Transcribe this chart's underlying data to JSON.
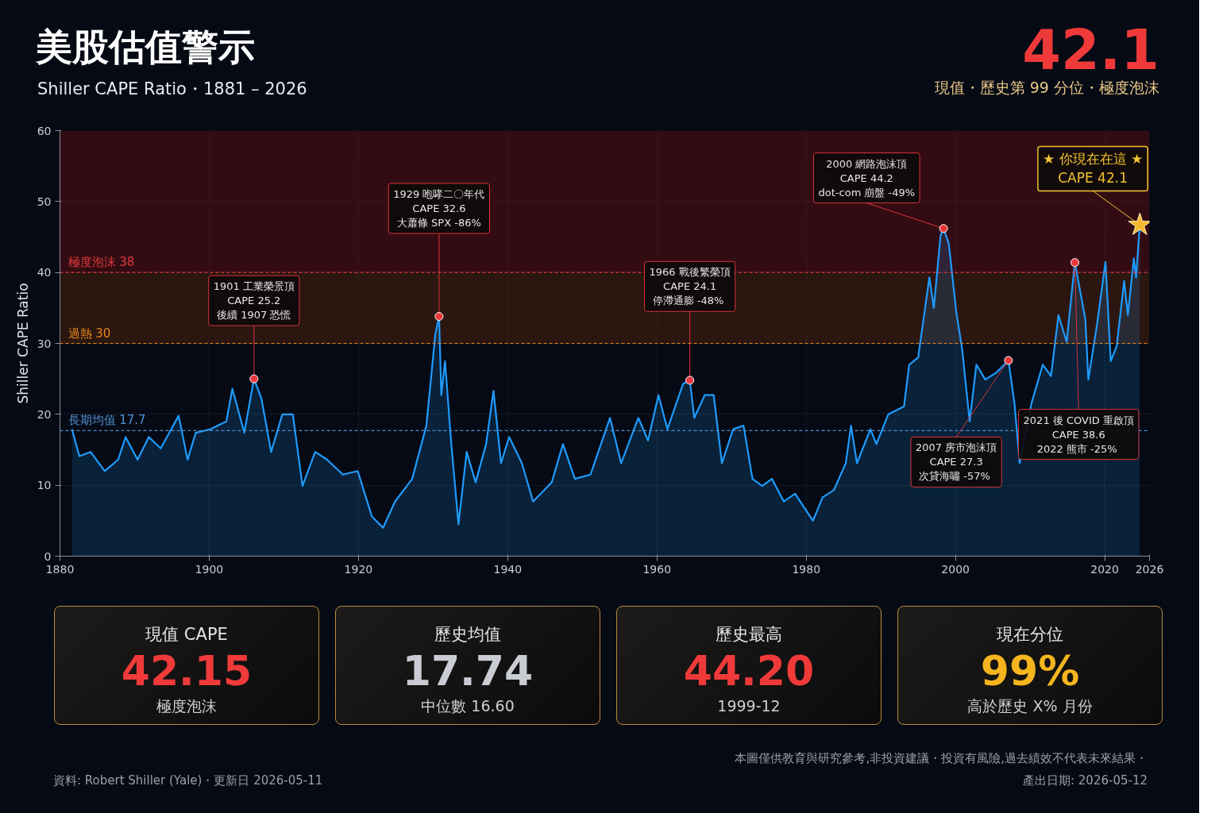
{
  "chart_data": {
    "type": "area",
    "title": "美股估值警示",
    "subtitle": "Shiller CAPE Ratio・1881 – 2026",
    "ylabel": "Shiller CAPE Ratio",
    "xlim": [
      1880,
      2026
    ],
    "xticks": [
      1880,
      1900,
      1920,
      1940,
      1960,
      1980,
      2000,
      2020,
      2026
    ],
    "ylim": [
      0,
      60
    ],
    "yticks": [
      0,
      10,
      20,
      30,
      40,
      50,
      60
    ],
    "grid": true,
    "x": [
      1881.6,
      1882.6,
      1884.1,
      1886,
      1887.8,
      1888.8,
      1890.4,
      1891.9,
      1893.5,
      1895.9,
      1897.1,
      1898.2,
      1900.2,
      1902.3,
      1903.1,
      1904.7,
      1906,
      1907,
      1908.3,
      1909.8,
      1911.2,
      1912.5,
      1914.2,
      1915.8,
      1917.9,
      1919.9,
      1921.8,
      1923.3,
      1924.9,
      1927.2,
      1929.1,
      1930.3,
      1930.8,
      1931.1,
      1931.6,
      1932.4,
      1933.4,
      1934.5,
      1935.7,
      1937.1,
      1938.1,
      1939.1,
      1940.2,
      1941.9,
      1943.4,
      1945.9,
      1947.4,
      1949,
      1951.1,
      1953.7,
      1955.2,
      1957.5,
      1958.8,
      1960.2,
      1961.4,
      1963.5,
      1964.4,
      1965,
      1966.4,
      1967.6,
      1968.7,
      1970.2,
      1971.6,
      1972.8,
      1974.1,
      1975.4,
      1977,
      1978.5,
      1980.9,
      1982.2,
      1983.7,
      1985.3,
      1986,
      1986.8,
      1988.6,
      1989.4,
      1991,
      1993.1,
      1993.8,
      1995,
      1996.5,
      1997.1,
      1998,
      1998.4,
      1999.1,
      2000.1,
      2000.9,
      2001.9,
      2002.8,
      2004,
      2005.5,
      2007.1,
      2007.9,
      2008.6,
      2010.2,
      2011.7,
      2012.8,
      2013.8,
      2014.9,
      2016,
      2017.4,
      2017.8,
      2019,
      2020.1,
      2020.8,
      2021.6,
      2022.6,
      2023.1,
      2023.9,
      2024.2,
      2024.7
    ],
    "series": [
      {
        "color": "#1e9bff",
        "values": [
          17.9,
          14.1,
          14.7,
          12,
          13.6,
          16.8,
          13.6,
          16.8,
          15.2,
          19.8,
          13.6,
          17.4,
          17.9,
          19,
          23.6,
          17.4,
          25,
          22.2,
          14.7,
          20,
          20,
          9.9,
          14.7,
          13.6,
          11.5,
          12,
          5.6,
          4,
          7.7,
          10.9,
          18.4,
          31.3,
          33.8,
          22.7,
          27.5,
          16.3,
          4.5,
          14.7,
          10.4,
          15.8,
          23.3,
          13.1,
          16.8,
          13.1,
          7.7,
          10.4,
          15.8,
          10.9,
          11.5,
          19.5,
          13.1,
          19.5,
          16.3,
          22.7,
          17.9,
          24.3,
          24.8,
          19.5,
          22.7,
          22.7,
          13.1,
          17.9,
          18.4,
          10.9,
          9.9,
          10.9,
          7.7,
          8.8,
          5,
          8.3,
          9.3,
          13.1,
          18.4,
          13.1,
          17.9,
          15.8,
          20,
          21.1,
          27,
          28,
          39.3,
          35,
          45.2,
          46.2,
          44.1,
          34.5,
          29.1,
          19,
          27,
          24.9,
          25.9,
          27.6,
          21.6,
          13.1,
          21.6,
          27,
          25.4,
          34,
          30.2,
          41.4,
          33.4,
          24.9,
          32.9,
          41.5,
          27.5,
          29.6,
          38.8,
          34,
          42,
          39.3,
          46.7
        ]
      }
    ],
    "ref_lines": [
      {
        "axis": "y",
        "value": 40,
        "label": "極度泡沫  38",
        "color": "#e03a3a",
        "line_style": "dashed"
      },
      {
        "axis": "y",
        "value": 30,
        "label": "過熱 30",
        "color": "#e8891e",
        "line_style": "dashed"
      },
      {
        "axis": "y",
        "value": 17.7,
        "label": "長期均值  17.7",
        "color": "#4f8fd0",
        "line_style": "dashed"
      }
    ],
    "bands": [
      {
        "axis": "y",
        "from": 40,
        "to": 60,
        "color": "#5a0f12"
      },
      {
        "axis": "y",
        "from": 30,
        "to": 40,
        "color": "#4a200c"
      }
    ],
    "annotations": [
      {
        "text": "1901 工業榮景頂\nCAPE 25.2\n後續 1907 恐慌",
        "x": 1906,
        "y": 25
      },
      {
        "text": "1929 咆哮二〇年代\nCAPE 32.6\n大蕭條 SPX -86%",
        "x": 1930.8,
        "y": 33.8
      },
      {
        "text": "1966 戰後繁榮頂\nCAPE 24.1\n停滯通膨  -48%",
        "x": 1964.4,
        "y": 24.8
      },
      {
        "text": "2000 網路泡沫頂\nCAPE 44.2\ndot-com 崩盤 -49%",
        "x": 1998.4,
        "y": 46.2
      },
      {
        "text": "2007 房市泡沫頂\nCAPE 27.3\n次貸海嘯  -57%",
        "x": 2007.1,
        "y": 27.6
      },
      {
        "text": "2021 後 COVID 重啟頂\nCAPE 38.6\n2022 熊市  -25%",
        "x": 2016,
        "y": 41.4
      },
      {
        "text": "★ 你現在在這 ★\nCAPE 42.1",
        "x": 2024.7,
        "y": 46.7
      },
      "42.1",
      "現值・歷史第 99 分位・極度泡沫",
      "現值  CAPE",
      "42.15",
      "極度泡沫",
      "歷史均值",
      "17.74",
      "中位數 16.60",
      "歷史最高",
      "44.20",
      "1999-12",
      "現在分位",
      "99%",
      "高於歷史 X% 月份",
      "資料: Robert Shiller (Yale)・更新日 2026-05-11",
      "本圖僅供教育與研究參考,非投資建議・投資有風險,過去績效不代表未來結果・",
      "產出日期: 2026-05-12"
    ]
  }
}
